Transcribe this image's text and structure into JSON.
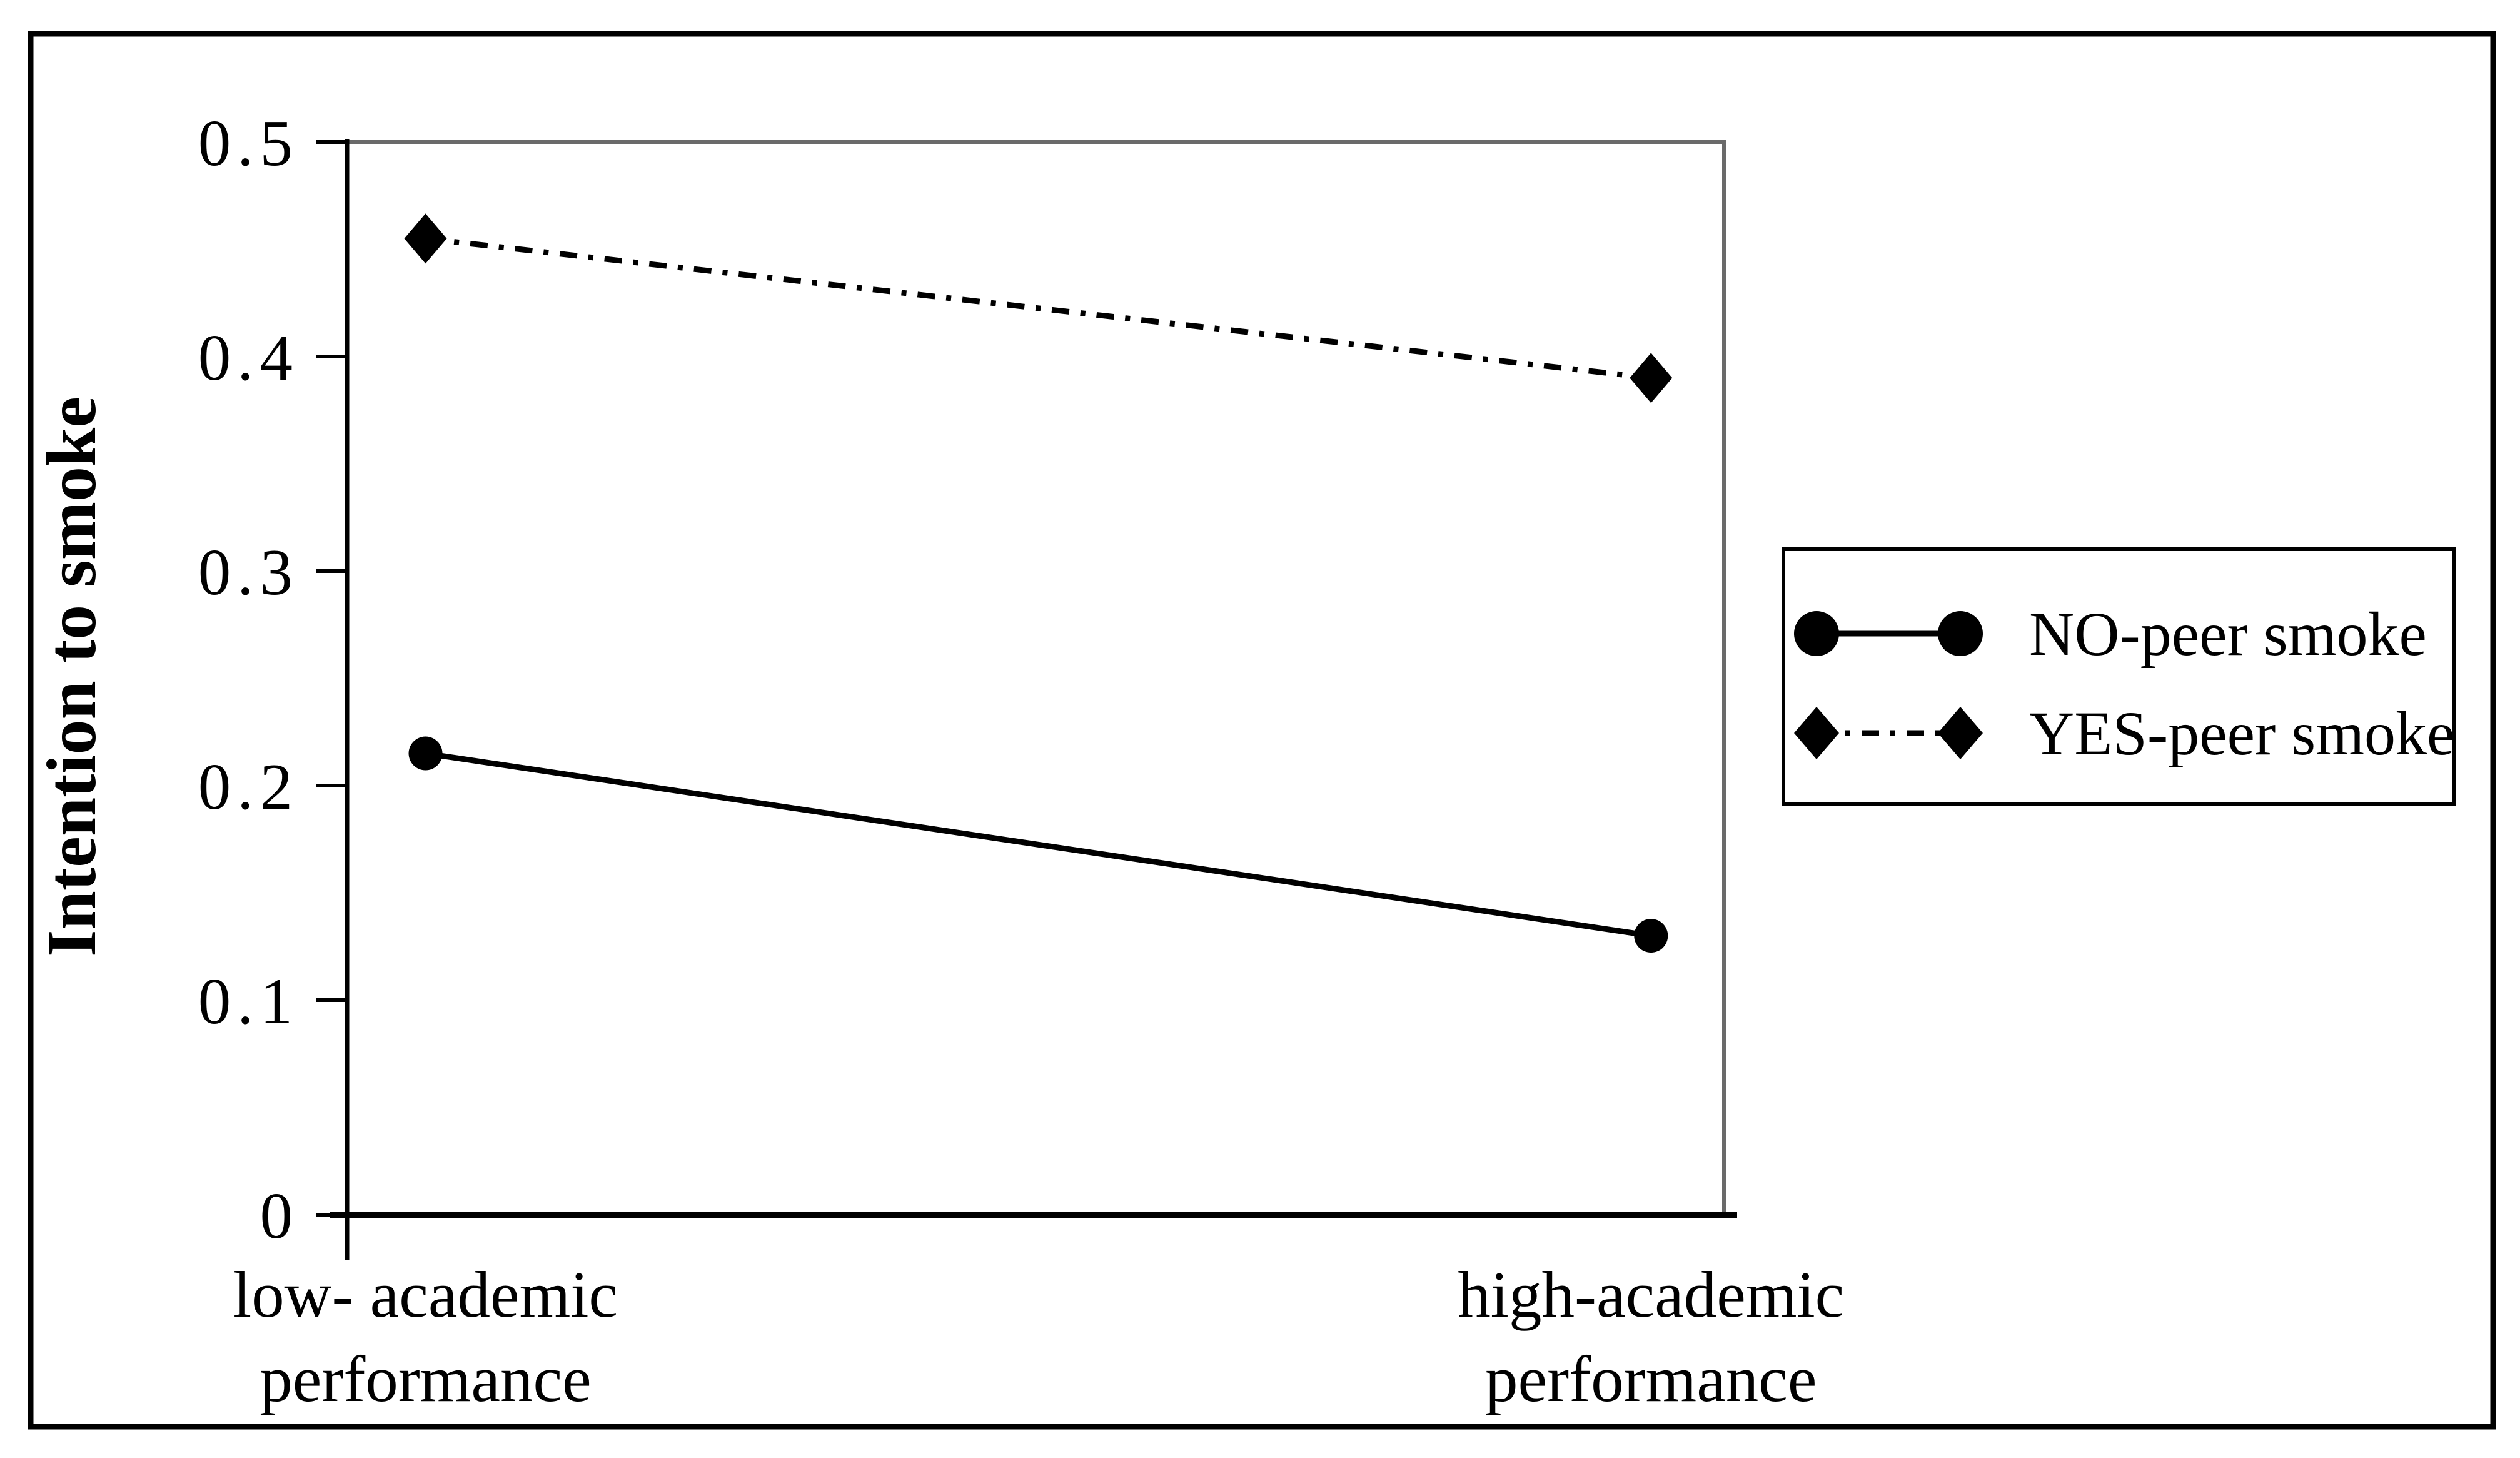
{
  "figure": {
    "background": "#ffffff",
    "border_color": "#000000"
  },
  "colors": {
    "ink": "#000000",
    "plot_border": "#6a6a6a",
    "background": "#ffffff"
  },
  "chart_data": {
    "type": "line",
    "title": "",
    "xlabel": "",
    "ylabel": "Intention to smoke",
    "ylim": [
      0,
      0.5
    ],
    "yticks": [
      0,
      0.1,
      0.2,
      0.3,
      0.4,
      0.5
    ],
    "ytick_labels": [
      "0",
      "0.1",
      "0.2",
      "0.3",
      "0.4",
      "0.5"
    ],
    "categories": [
      "low- academic performance",
      "high-academic performance"
    ],
    "category_lines": [
      [
        "low- academic",
        "performance"
      ],
      [
        "high-academic",
        "performance"
      ]
    ],
    "series": [
      {
        "name": "NO-peer smoke",
        "values": [
          0.215,
          0.13
        ],
        "line_style": "solid",
        "marker": "circle"
      },
      {
        "name": "YES-peer smoke",
        "values": [
          0.455,
          0.39
        ],
        "line_style": "dash-dot",
        "marker": "diamond"
      }
    ],
    "grid": false,
    "legend_position": "right-inside-figure"
  }
}
